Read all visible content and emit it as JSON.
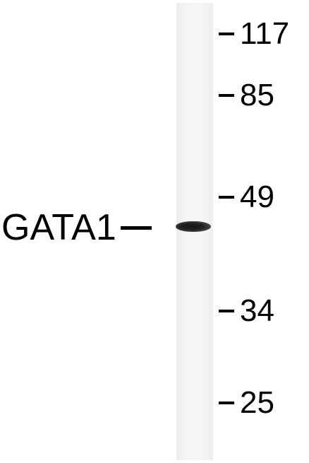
{
  "protein_label": "GATA1",
  "markers": [
    {
      "label": "117"
    },
    {
      "label": "85"
    },
    {
      "label": "49"
    },
    {
      "label": "34"
    },
    {
      "label": "25"
    }
  ]
}
